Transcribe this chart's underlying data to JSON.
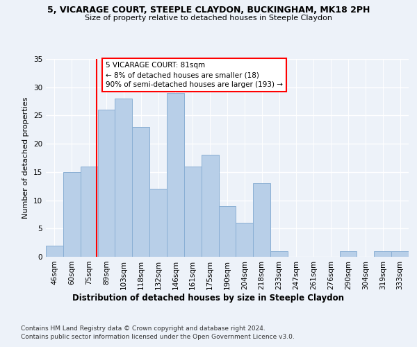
{
  "title1": "5, VICARAGE COURT, STEEPLE CLAYDON, BUCKINGHAM, MK18 2PH",
  "title2": "Size of property relative to detached houses in Steeple Claydon",
  "xlabel": "Distribution of detached houses by size in Steeple Claydon",
  "ylabel": "Number of detached properties",
  "categories": [
    "46sqm",
    "60sqm",
    "75sqm",
    "89sqm",
    "103sqm",
    "118sqm",
    "132sqm",
    "146sqm",
    "161sqm",
    "175sqm",
    "190sqm",
    "204sqm",
    "218sqm",
    "233sqm",
    "247sqm",
    "261sqm",
    "276sqm",
    "290sqm",
    "304sqm",
    "319sqm",
    "333sqm"
  ],
  "values": [
    2,
    15,
    16,
    26,
    28,
    23,
    12,
    29,
    16,
    18,
    9,
    6,
    13,
    1,
    0,
    0,
    0,
    1,
    0,
    1,
    1
  ],
  "bar_color": "#b8cfe8",
  "bar_edgecolor": "#8aafd4",
  "background_color": "#edf2f9",
  "grid_color": "#ffffff",
  "red_line_x": 2.43,
  "annotation_text_line1": "5 VICARAGE COURT: 81sqm",
  "annotation_text_line2": "← 8% of detached houses are smaller (18)",
  "annotation_text_line3": "90% of semi-detached houses are larger (193) →",
  "ylim": [
    0,
    35
  ],
  "yticks": [
    0,
    5,
    10,
    15,
    20,
    25,
    30,
    35
  ],
  "footnote1": "Contains HM Land Registry data © Crown copyright and database right 2024.",
  "footnote2": "Contains public sector information licensed under the Open Government Licence v3.0."
}
